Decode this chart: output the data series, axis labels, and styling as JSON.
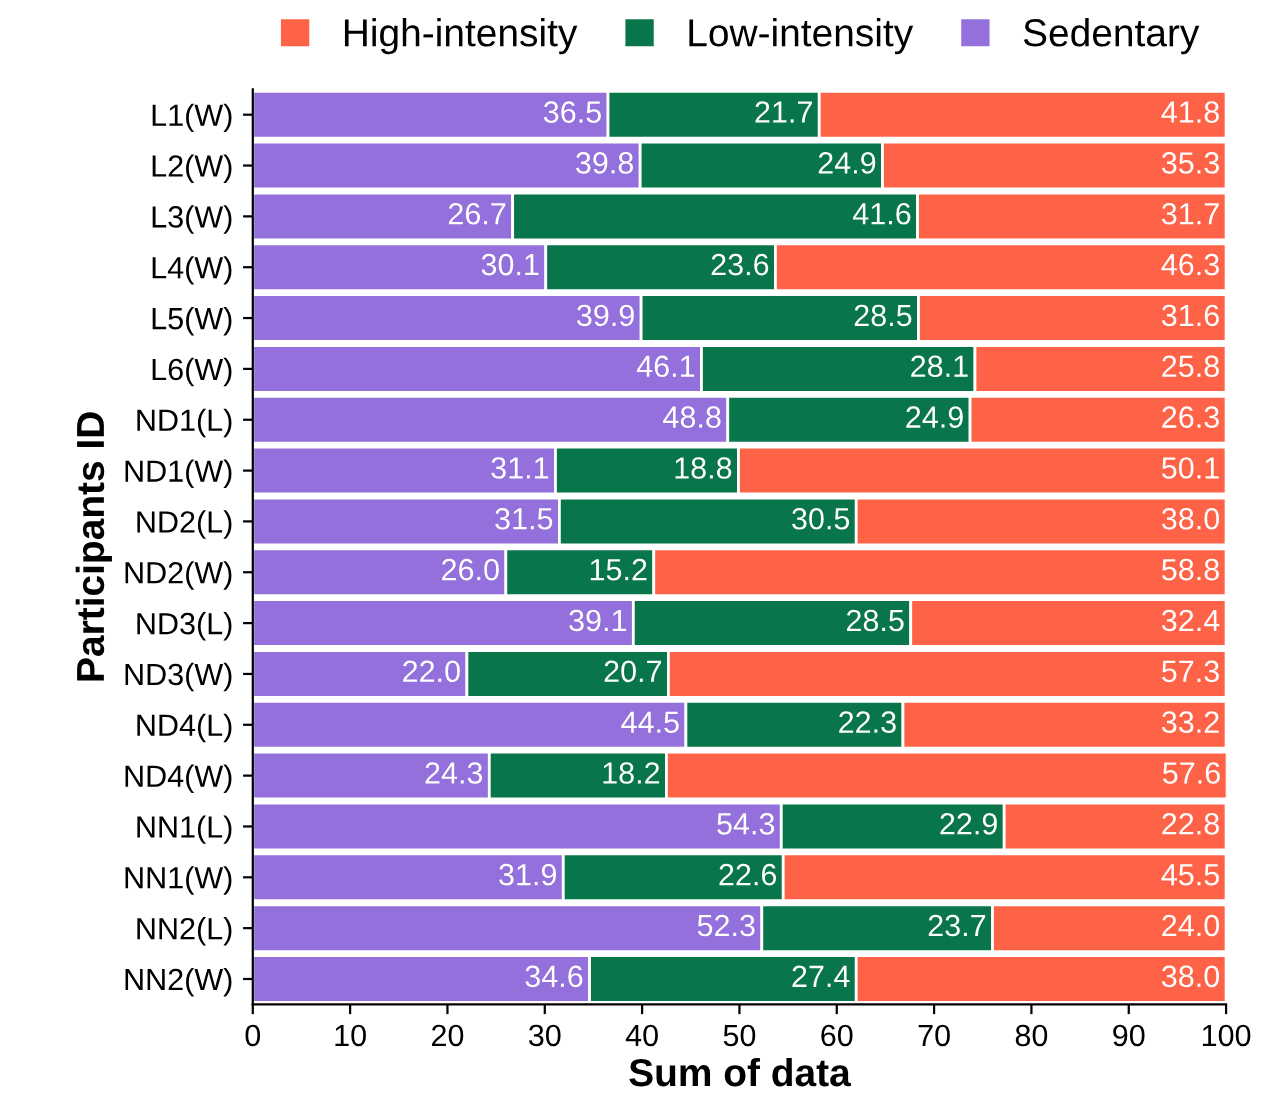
{
  "chart_data": {
    "type": "bar",
    "orientation": "horizontal",
    "stacked": true,
    "xlabel": "Sum of data",
    "ylabel": "Participants ID",
    "categories": [
      "L1(W)",
      "L2(W)",
      "L3(W)",
      "L4(W)",
      "L5(W)",
      "L6(W)",
      "ND1(L)",
      "ND1(W)",
      "ND2(L)",
      "ND2(W)",
      "ND3(L)",
      "ND3(W)",
      "ND4(L)",
      "ND4(W)",
      "NN1(L)",
      "NN1(W)",
      "NN2(L)",
      "NN2(W)"
    ],
    "series": [
      {
        "name": "Sedentary",
        "color": "#9370db",
        "values": [
          36.5,
          39.8,
          26.7,
          30.1,
          39.9,
          46.1,
          48.8,
          31.1,
          31.5,
          26.0,
          39.1,
          22.0,
          44.5,
          24.3,
          54.3,
          31.9,
          52.3,
          34.6
        ],
        "value_labels": [
          "36.5",
          "39.8",
          "26.7",
          "30.1",
          "39.9",
          "46.1",
          "48.8",
          "31.1",
          "31.5",
          "26.0",
          "39.1",
          "22.0",
          "44.5",
          "24.3",
          "54.3",
          "31.9",
          "52.3",
          "34.6"
        ]
      },
      {
        "name": "Low-intensity",
        "color": "#08764a",
        "values": [
          21.7,
          24.9,
          41.6,
          23.6,
          28.5,
          28.1,
          24.9,
          18.8,
          30.5,
          15.2,
          28.5,
          20.7,
          22.3,
          18.2,
          22.9,
          22.6,
          23.7,
          27.4
        ],
        "value_labels": [
          "21.7",
          "24.9",
          "41.6",
          "23.6",
          "28.5",
          "28.1",
          "24.9",
          "18.8",
          "30.5",
          "15.2",
          "28.5",
          "20.7",
          "22.3",
          "18.2",
          "22.9",
          "22.6",
          "23.7",
          "27.4"
        ]
      },
      {
        "name": "High-intensity",
        "color": "#ff6347",
        "values": [
          41.8,
          35.3,
          31.7,
          46.3,
          31.6,
          25.8,
          26.3,
          50.1,
          38.0,
          58.8,
          32.4,
          57.3,
          33.2,
          57.6,
          22.8,
          45.5,
          24.0,
          38.0
        ],
        "value_labels": [
          "41.8",
          "35.3",
          "31.7",
          "46.3",
          "31.6",
          "25.8",
          "26.3",
          "50.1",
          "38.0",
          "58.8",
          "32.4",
          "57.3",
          "33.2",
          "57.6",
          "22.8",
          "45.5",
          "24.0",
          "38.0"
        ]
      }
    ],
    "xlim": [
      0,
      100
    ],
    "xticks": [
      0,
      10,
      20,
      30,
      40,
      50,
      60,
      70,
      80,
      90,
      100
    ],
    "legend": "top",
    "grid": false
  }
}
